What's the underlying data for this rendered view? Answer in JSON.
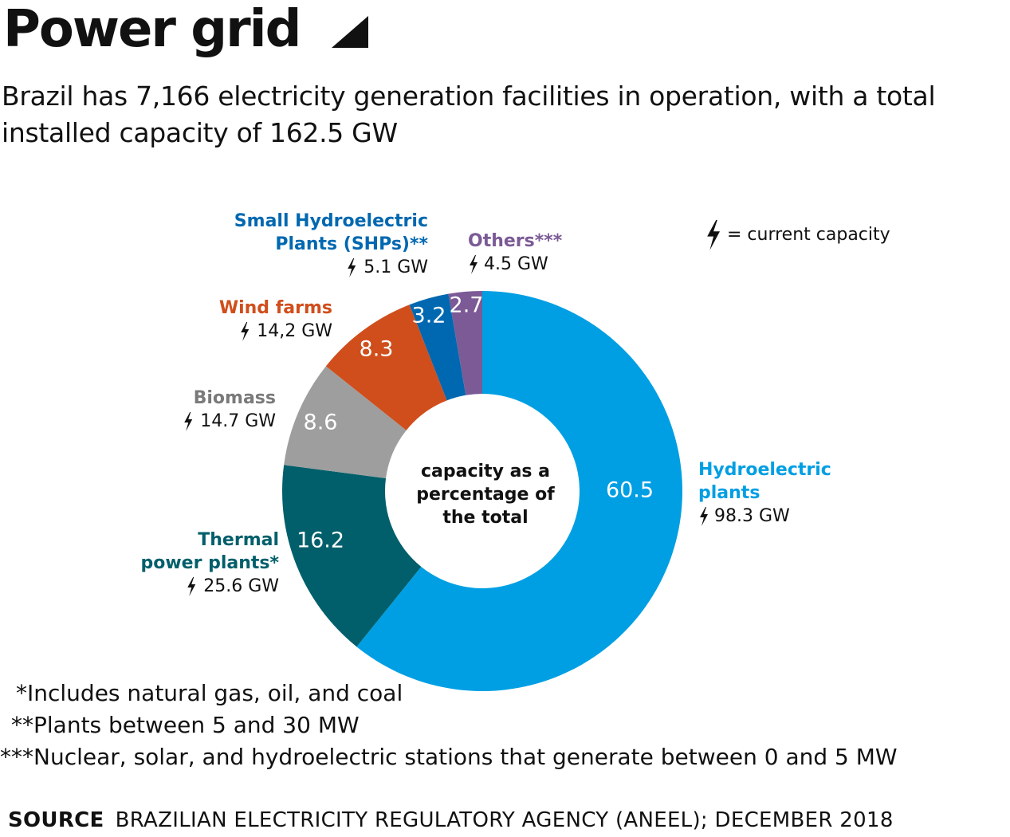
{
  "header": {
    "title": "Power grid",
    "subtitle": "Brazil has 7,166 electricity generation facilities in operation, with a total installed capacity of 162.5 GW"
  },
  "icons": {
    "title_icon": "triangle-corner-icon",
    "bolt": "lightning-bolt-icon"
  },
  "legend": {
    "text": "= current capacity"
  },
  "center_label": [
    "capacity as a",
    "percentage of",
    "the total"
  ],
  "chart_data": {
    "type": "pie",
    "title": "Power grid",
    "unit": "percent",
    "center_label": "capacity as a percentage of the total",
    "slices": [
      {
        "name": "Hydroelectric plants",
        "label_lines": [
          "Hydroelectric",
          "plants"
        ],
        "value": 60.5,
        "value_label": "60.5",
        "capacity": "98.3 GW",
        "color": "#009fe3"
      },
      {
        "name": "Thermal power plants*",
        "label_lines": [
          "Thermal",
          "power plants*"
        ],
        "value": 16.2,
        "value_label": "16.2",
        "capacity": "25.6 GW",
        "color": "#005f6b"
      },
      {
        "name": "Biomass",
        "label_lines": [
          "Biomass"
        ],
        "value": 8.6,
        "value_label": "8.6",
        "capacity": "14.7 GW",
        "color": "#9e9e9e"
      },
      {
        "name": "Wind farms",
        "label_lines": [
          "Wind farms"
        ],
        "value": 8.3,
        "value_label": "8.3",
        "capacity": "14,2 GW",
        "color": "#d04e1c"
      },
      {
        "name": "Small Hydroelectric Plants (SHPs)**",
        "label_lines": [
          "Small Hydroelectric",
          "Plants (SHPs)**"
        ],
        "value": 3.2,
        "value_label": "3.2",
        "capacity": "5.1 GW",
        "color": "#0068b0"
      },
      {
        "name": "Others***",
        "label_lines": [
          "Others***"
        ],
        "value": 2.7,
        "value_label": "2.7",
        "capacity": "4.5 GW",
        "color": "#7b5a96"
      }
    ]
  },
  "footnotes": [
    "*Includes natural gas, oil, and coal",
    "**Plants between 5 and 30 MW",
    "***Nuclear, solar, and hydroelectric stations that generate between 0 and 5 MW"
  ],
  "source": {
    "label": "SOURCE",
    "text": "BRAZILIAN ELECTRICITY REGULATORY AGENCY (ANEEL); DECEMBER 2018"
  }
}
